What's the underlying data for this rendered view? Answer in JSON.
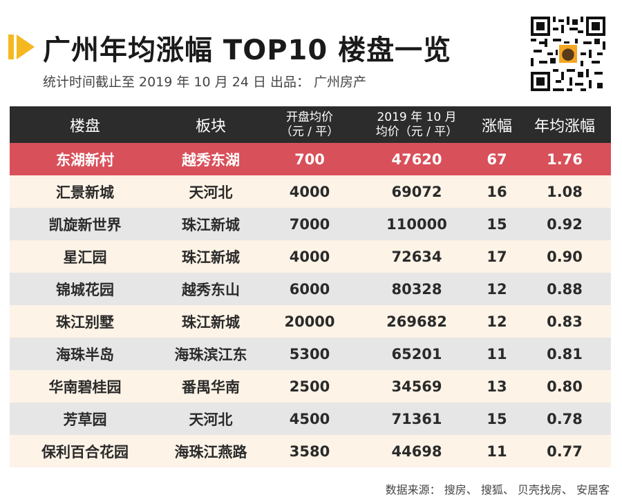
{
  "title": "广州年均涨幅 TOP10 楼盘一览",
  "subtitle": "统计时间截止至 2019 年 10 月 24 日  出品：  广州房产",
  "accent_color": "#f5b820",
  "highlight_color": "#d8505a",
  "qr_icon": "qr-code-icon",
  "table": {
    "headers": {
      "name": "楼盘",
      "district": "板块",
      "open_price_1": "开盘均价",
      "open_price_2": "（元 / 平）",
      "price_2019_1": "2019 年 10 月",
      "price_2019_2": "均价（元 / 平）",
      "growth": "涨幅",
      "annual_growth": "年均涨幅"
    },
    "rows": [
      {
        "name": "东湖新村",
        "district": "越秀东湖",
        "open": "700",
        "current": "47620",
        "growth": "67",
        "annual": "1.76"
      },
      {
        "name": "汇景新城",
        "district": "天河北",
        "open": "4000",
        "current": "69072",
        "growth": "16",
        "annual": "1.08"
      },
      {
        "name": "凯旋新世界",
        "district": "珠江新城",
        "open": "7000",
        "current": "110000",
        "growth": "15",
        "annual": "0.92"
      },
      {
        "name": "星汇园",
        "district": "珠江新城",
        "open": "4000",
        "current": "72634",
        "growth": "17",
        "annual": "0.90"
      },
      {
        "name": "锦城花园",
        "district": "越秀东山",
        "open": "6000",
        "current": "80328",
        "growth": "12",
        "annual": "0.88"
      },
      {
        "name": "珠江别墅",
        "district": "珠江新城",
        "open": "20000",
        "current": "269682",
        "growth": "12",
        "annual": "0.83"
      },
      {
        "name": "海珠半岛",
        "district": "海珠滨江东",
        "open": "5300",
        "current": "65201",
        "growth": "11",
        "annual": "0.81"
      },
      {
        "name": "华南碧桂园",
        "district": "番禺华南",
        "open": "2500",
        "current": "34569",
        "growth": "13",
        "annual": "0.80"
      },
      {
        "name": "芳草园",
        "district": "天河北",
        "open": "4500",
        "current": "71361",
        "growth": "15",
        "annual": "0.78"
      },
      {
        "name": "保利百合花园",
        "district": "海珠江燕路",
        "open": "3580",
        "current": "44698",
        "growth": "11",
        "annual": "0.77"
      }
    ]
  },
  "source": "数据来源：  搜房、  搜狐、  贝壳找房、  安居客"
}
